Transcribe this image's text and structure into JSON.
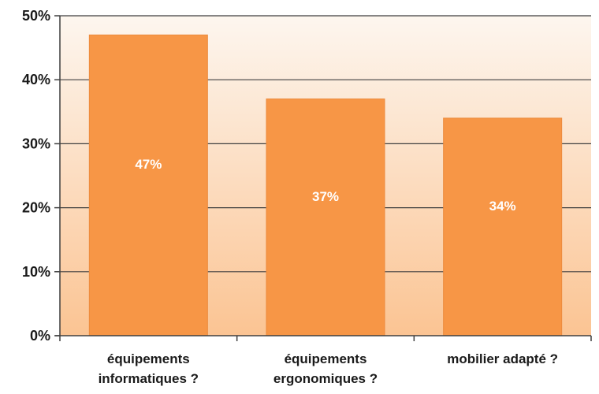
{
  "chart_data": {
    "type": "bar",
    "title": "",
    "xlabel": "",
    "ylabel": "",
    "categories": [
      [
        "équipements",
        "informatiques ?"
      ],
      [
        "équipements",
        "ergonomiques ?"
      ],
      [
        "mobilier adapté ?"
      ]
    ],
    "values": [
      47,
      37,
      34
    ],
    "data_labels": [
      "47%",
      "37%",
      "34%"
    ],
    "ylim": [
      0,
      50
    ],
    "y_ticks": [
      0,
      10,
      20,
      30,
      40,
      50
    ],
    "y_tick_labels": [
      "0%",
      "10%",
      "20%",
      "30%",
      "40%",
      "50%"
    ],
    "grid": true,
    "legend": "none",
    "colors": {
      "bar": "#f79646",
      "bar_edge": "#ec8a3c",
      "plot_bg_top": "#fdf6ef",
      "plot_bg_bottom": "#fbc493",
      "grid": "#3f3f3f",
      "data_label": "#ffffff"
    }
  }
}
